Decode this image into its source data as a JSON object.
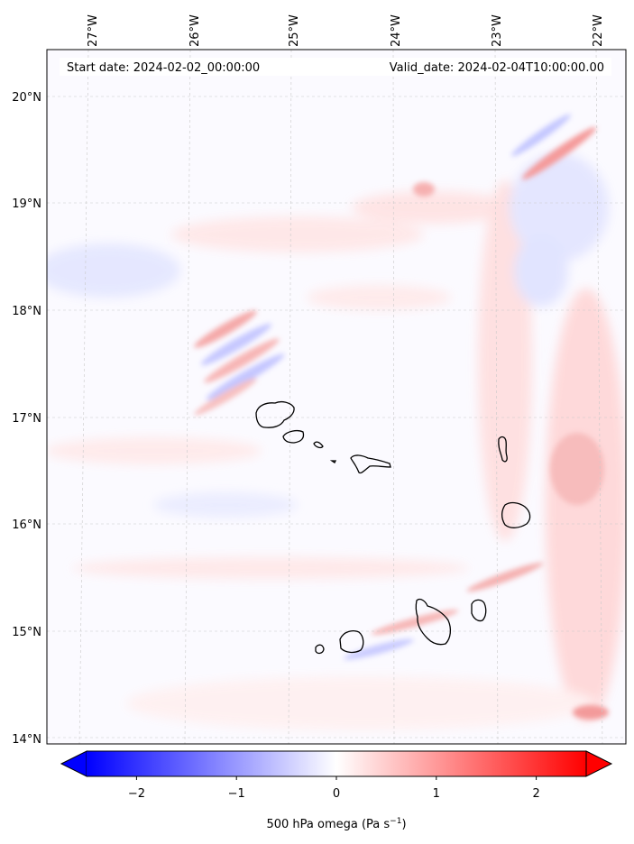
{
  "header": {
    "start_date": "Start date: 2024-02-02_00:00:00",
    "valid_date": "Valid_date: 2024-02-04T10:00:00.00"
  },
  "map": {
    "lon_ticks": [
      "27°W",
      "26°W",
      "25°W",
      "24°W",
      "23°W",
      "22°W"
    ],
    "lat_ticks": [
      "20°N",
      "19°N",
      "18°N",
      "17°N",
      "16°N",
      "15°N",
      "14°N"
    ],
    "lon_range": [
      -27.35,
      -21.7
    ],
    "lat_range": [
      13.95,
      20.42
    ]
  },
  "colorbar": {
    "ticks": [
      "−2",
      "−1",
      "0",
      "1",
      "2"
    ],
    "tick_values": [
      -2,
      -1,
      0,
      1,
      2
    ],
    "range": [
      -2.5,
      2.5
    ],
    "extend": "both",
    "cmap": "bwr",
    "label_main": "500 hPa omega (Pa s",
    "label_exp": "−1",
    "label_close": ")"
  },
  "colors": {
    "negative": "#0000ff",
    "neutral": "#ffffff",
    "positive": "#ff0000"
  }
}
